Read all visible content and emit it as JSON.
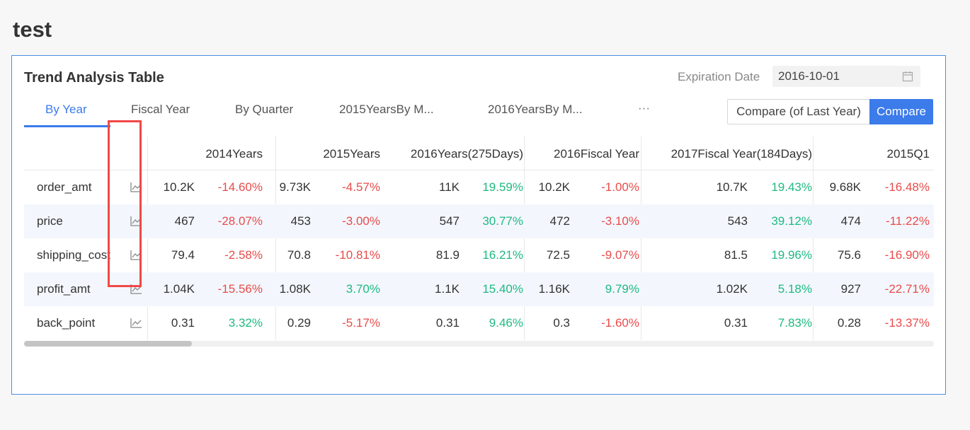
{
  "page": {
    "title": "test"
  },
  "card": {
    "title": "Trend Analysis Table",
    "expiration_label": "Expiration Date",
    "expiration_date": "2016-10-01"
  },
  "tabs": [
    {
      "label": "By Year",
      "active": true
    },
    {
      "label": "Fiscal Year",
      "active": false
    },
    {
      "label": "By Quarter",
      "active": false
    },
    {
      "label": "2015YearsBy M...",
      "active": false
    },
    {
      "label": "2016YearsBy M...",
      "active": false
    }
  ],
  "tabs_more": "···",
  "compare": {
    "last_year_label": "Compare (of Last Year)",
    "compare_label": "Compare"
  },
  "columns": [
    "2014Years",
    "2015Years",
    "2016Years(275Days)",
    "2016Fiscal Year",
    "2017Fiscal Year(184Days)",
    "2015Q1"
  ],
  "rows": [
    {
      "metric": "order_amt",
      "cells": [
        {
          "value": "10.2K",
          "pct": "-14.60%",
          "dir": "neg"
        },
        {
          "value": "9.73K",
          "pct": "-4.57%",
          "dir": "neg"
        },
        {
          "value": "11K",
          "pct": "19.59%",
          "dir": "pos"
        },
        {
          "value": "10.2K",
          "pct": "-1.00%",
          "dir": "neg"
        },
        {
          "value": "10.7K",
          "pct": "19.43%",
          "dir": "pos"
        },
        {
          "value": "9.68K",
          "pct": "-16.48%",
          "dir": "neg"
        }
      ]
    },
    {
      "metric": "price",
      "cells": [
        {
          "value": "467",
          "pct": "-28.07%",
          "dir": "neg"
        },
        {
          "value": "453",
          "pct": "-3.00%",
          "dir": "neg"
        },
        {
          "value": "547",
          "pct": "30.77%",
          "dir": "pos"
        },
        {
          "value": "472",
          "pct": "-3.10%",
          "dir": "neg"
        },
        {
          "value": "543",
          "pct": "39.12%",
          "dir": "pos"
        },
        {
          "value": "474",
          "pct": "-11.22%",
          "dir": "neg"
        }
      ]
    },
    {
      "metric": "shipping_cost",
      "cells": [
        {
          "value": "79.4",
          "pct": "-2.58%",
          "dir": "neg"
        },
        {
          "value": "70.8",
          "pct": "-10.81%",
          "dir": "neg"
        },
        {
          "value": "81.9",
          "pct": "16.21%",
          "dir": "pos"
        },
        {
          "value": "72.5",
          "pct": "-9.07%",
          "dir": "neg"
        },
        {
          "value": "81.5",
          "pct": "19.96%",
          "dir": "pos"
        },
        {
          "value": "75.6",
          "pct": "-16.90%",
          "dir": "neg"
        }
      ]
    },
    {
      "metric": "profit_amt",
      "cells": [
        {
          "value": "1.04K",
          "pct": "-15.56%",
          "dir": "neg"
        },
        {
          "value": "1.08K",
          "pct": "3.70%",
          "dir": "pos"
        },
        {
          "value": "1.1K",
          "pct": "15.40%",
          "dir": "pos"
        },
        {
          "value": "1.16K",
          "pct": "9.79%",
          "dir": "pos"
        },
        {
          "value": "1.02K",
          "pct": "5.18%",
          "dir": "pos"
        },
        {
          "value": "927",
          "pct": "-22.71%",
          "dir": "neg"
        }
      ]
    },
    {
      "metric": "back_point",
      "cells": [
        {
          "value": "0.31",
          "pct": "3.32%",
          "dir": "pos"
        },
        {
          "value": "0.29",
          "pct": "-5.17%",
          "dir": "neg"
        },
        {
          "value": "0.31",
          "pct": "9.46%",
          "dir": "pos"
        },
        {
          "value": "0.3",
          "pct": "-1.60%",
          "dir": "neg"
        },
        {
          "value": "0.31",
          "pct": "7.83%",
          "dir": "pos"
        },
        {
          "value": "0.28",
          "pct": "-13.37%",
          "dir": "neg"
        }
      ]
    }
  ],
  "icons": {
    "trend": "line-chart-icon",
    "calendar": "calendar-icon"
  },
  "colors": {
    "accent": "#3b7bea",
    "negative": "#e84b4b",
    "positive": "#1fb981",
    "highlight": "#f04848"
  }
}
